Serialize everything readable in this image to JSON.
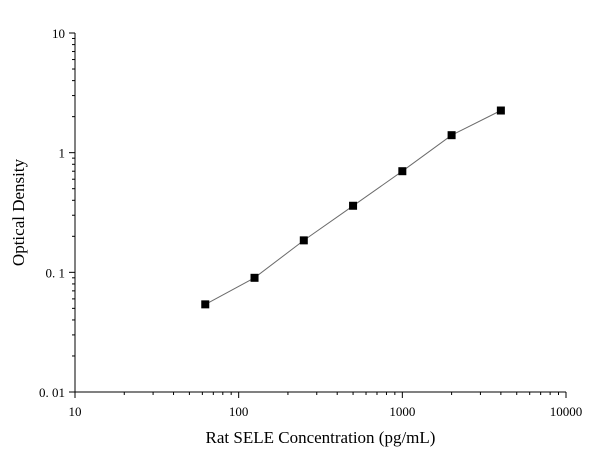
{
  "chart_data": {
    "type": "scatter",
    "title": "",
    "xlabel": "Rat SELE Concentration (pg/mL)",
    "ylabel": "Optical Density",
    "x_scale": "log",
    "y_scale": "log",
    "xlim": [
      10,
      10000
    ],
    "ylim": [
      0.01,
      10
    ],
    "x_ticks": [
      10,
      100,
      1000,
      10000
    ],
    "x_tick_labels": [
      "10",
      "100",
      "1000",
      "10000"
    ],
    "y_ticks": [
      0.01,
      0.1,
      1,
      10
    ],
    "y_tick_labels": [
      "0. 01",
      "0. 1",
      "1",
      "10"
    ],
    "grid": false,
    "legend": false,
    "marker": "square",
    "colors": {
      "marker": "#000000",
      "curve": "#6b6b6b",
      "axis": "#000000"
    },
    "series": [
      {
        "x": [
          62.5,
          125,
          250,
          500,
          1000,
          2000,
          4000
        ],
        "y": [
          0.054,
          0.09,
          0.185,
          0.36,
          0.7,
          1.4,
          2.25
        ]
      }
    ]
  }
}
